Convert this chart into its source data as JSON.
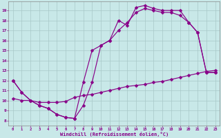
{
  "xlabel": "Windchill (Refroidissement éolien,°C)",
  "bg_color": "#c8e8e8",
  "grid_color": "#a8c8c8",
  "line_color": "#880088",
  "curve1_x": [
    0,
    1,
    2,
    3,
    4,
    5,
    6,
    7,
    8,
    9,
    10,
    11,
    12,
    13,
    14,
    15,
    16,
    17,
    18,
    19,
    20,
    21,
    22,
    23
  ],
  "curve1_y": [
    12.0,
    10.8,
    10.0,
    9.5,
    9.2,
    8.6,
    8.3,
    8.2,
    9.5,
    11.8,
    15.5,
    16.0,
    18.0,
    17.5,
    19.3,
    19.5,
    19.2,
    19.0,
    19.0,
    19.0,
    17.8,
    16.8,
    12.8,
    12.8
  ],
  "curve2_x": [
    0,
    1,
    2,
    3,
    4,
    5,
    6,
    7,
    8,
    9,
    10,
    11,
    12,
    13,
    14,
    15,
    16,
    17,
    18,
    19,
    20,
    21,
    22,
    23
  ],
  "curve2_y": [
    12.0,
    10.8,
    10.0,
    9.5,
    9.2,
    8.6,
    8.3,
    8.2,
    11.8,
    15.0,
    15.5,
    16.0,
    17.0,
    17.8,
    18.8,
    19.2,
    19.0,
    18.8,
    18.8,
    18.5,
    17.8,
    16.8,
    12.8,
    12.8
  ],
  "curve3_x": [
    0,
    1,
    2,
    3,
    4,
    5,
    6,
    7,
    8,
    9,
    10,
    11,
    12,
    13,
    14,
    15,
    16,
    17,
    18,
    19,
    20,
    21,
    22,
    23
  ],
  "curve3_y": [
    10.2,
    10.0,
    10.0,
    9.8,
    9.8,
    9.8,
    9.9,
    10.3,
    10.5,
    10.6,
    10.8,
    11.0,
    11.2,
    11.4,
    11.5,
    11.6,
    11.8,
    11.9,
    12.1,
    12.3,
    12.5,
    12.7,
    12.9,
    13.0
  ],
  "xlim": [
    0,
    23
  ],
  "ylim": [
    8,
    19
  ],
  "yticks": [
    8,
    9,
    10,
    11,
    12,
    13,
    14,
    15,
    16,
    17,
    18,
    19
  ],
  "xticks": [
    0,
    1,
    2,
    3,
    4,
    5,
    6,
    7,
    8,
    9,
    10,
    11,
    12,
    13,
    14,
    15,
    16,
    17,
    18,
    19,
    20,
    21,
    22,
    23
  ]
}
